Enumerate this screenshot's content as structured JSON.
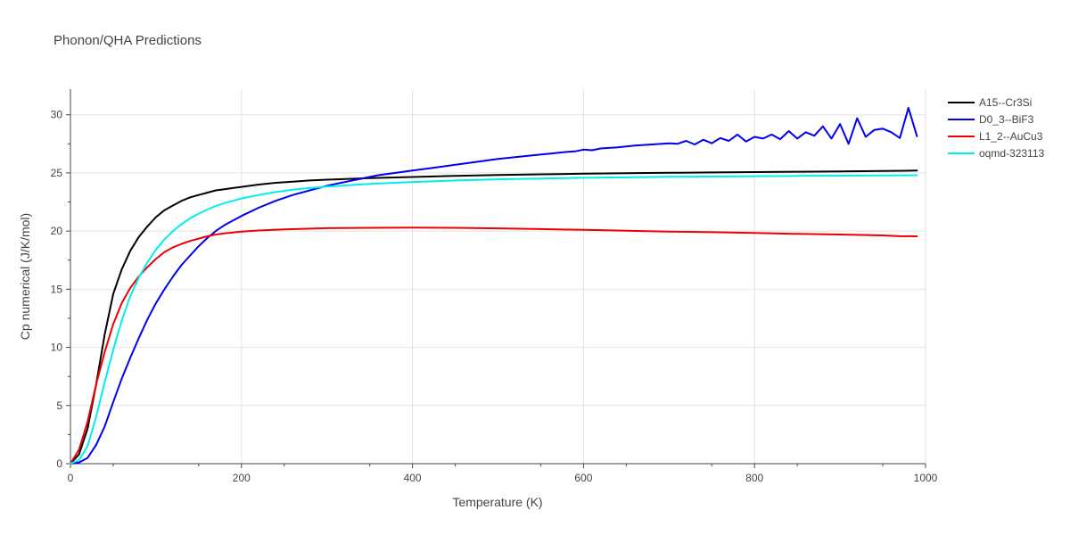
{
  "chart_data": {
    "type": "line",
    "title": "Phonon/QHA Predictions",
    "xlabel": "Temperature (K)",
    "ylabel": "Cp numerical (J/K/mol)",
    "xlim": [
      0,
      1000
    ],
    "ylim": [
      0,
      32.2
    ],
    "xticks": [
      0,
      200,
      400,
      600,
      800,
      1000
    ],
    "xtick_labels": [
      "0",
      "200",
      "400",
      "600",
      "800",
      "1000"
    ],
    "yticks": [
      0,
      5,
      10,
      15,
      20,
      25,
      30
    ],
    "ytick_labels": [
      "0",
      "5",
      "10",
      "15",
      "20",
      "25",
      "30"
    ],
    "grid": true,
    "legend_position": "top-right",
    "series": [
      {
        "name": "A15--Cr3Si",
        "color": "#000000",
        "x": [
          0,
          10,
          20,
          30,
          40,
          50,
          60,
          70,
          80,
          90,
          100,
          110,
          120,
          130,
          140,
          150,
          160,
          170,
          180,
          190,
          200,
          220,
          240,
          260,
          280,
          300,
          350,
          400,
          450,
          500,
          550,
          600,
          650,
          700,
          750,
          800,
          850,
          900,
          950,
          990
        ],
        "y": [
          0,
          0.8,
          3.0,
          6.8,
          11.1,
          14.6,
          16.7,
          18.3,
          19.5,
          20.4,
          21.2,
          21.8,
          22.2,
          22.6,
          22.9,
          23.1,
          23.3,
          23.5,
          23.6,
          23.7,
          23.8,
          24.0,
          24.15,
          24.25,
          24.35,
          24.42,
          24.55,
          24.65,
          24.75,
          24.82,
          24.88,
          24.93,
          24.97,
          25.01,
          25.04,
          25.07,
          25.1,
          25.13,
          25.16,
          25.2
        ]
      },
      {
        "name": "D0_3--BiF3",
        "color": "#0000ee",
        "x": [
          0,
          10,
          20,
          30,
          40,
          50,
          60,
          70,
          80,
          90,
          100,
          110,
          120,
          130,
          140,
          150,
          160,
          170,
          180,
          190,
          200,
          220,
          240,
          260,
          280,
          300,
          320,
          340,
          360,
          380,
          400,
          420,
          440,
          460,
          480,
          500,
          520,
          540,
          560,
          580,
          590,
          600,
          610,
          620,
          640,
          660,
          680,
          700,
          710,
          720,
          730,
          740,
          750,
          760,
          770,
          780,
          790,
          800,
          810,
          820,
          830,
          840,
          850,
          860,
          870,
          880,
          890,
          900,
          910,
          920,
          930,
          940,
          950,
          960,
          970,
          980,
          990
        ],
        "y": [
          0,
          0.1,
          0.5,
          1.6,
          3.2,
          5.3,
          7.3,
          9.1,
          10.8,
          12.4,
          13.8,
          15.0,
          16.1,
          17.1,
          17.9,
          18.7,
          19.4,
          20.0,
          20.5,
          20.9,
          21.3,
          22.0,
          22.6,
          23.1,
          23.5,
          23.9,
          24.2,
          24.5,
          24.8,
          25.0,
          25.2,
          25.4,
          25.6,
          25.8,
          26.0,
          26.2,
          26.35,
          26.5,
          26.65,
          26.8,
          26.85,
          27.0,
          26.95,
          27.1,
          27.2,
          27.35,
          27.45,
          27.55,
          27.5,
          27.75,
          27.45,
          27.85,
          27.55,
          28.0,
          27.75,
          28.3,
          27.7,
          28.1,
          27.95,
          28.3,
          27.9,
          28.6,
          27.95,
          28.5,
          28.2,
          29.0,
          27.95,
          29.2,
          27.5,
          29.7,
          28.1,
          28.7,
          28.8,
          28.5,
          28.0,
          30.6,
          28.15
        ]
      },
      {
        "name": "L1_2--AuCu3",
        "color": "#ee0000",
        "x": [
          0,
          10,
          20,
          30,
          40,
          50,
          60,
          70,
          80,
          90,
          100,
          110,
          120,
          130,
          140,
          150,
          160,
          170,
          180,
          190,
          200,
          220,
          250,
          300,
          350,
          400,
          450,
          500,
          550,
          600,
          650,
          700,
          750,
          800,
          850,
          900,
          950,
          970,
          990
        ],
        "y": [
          0,
          1.2,
          3.6,
          6.8,
          9.6,
          12.0,
          13.8,
          15.1,
          16.1,
          16.9,
          17.6,
          18.2,
          18.6,
          18.9,
          19.15,
          19.35,
          19.55,
          19.7,
          19.8,
          19.88,
          19.95,
          20.05,
          20.15,
          20.25,
          20.28,
          20.3,
          20.28,
          20.23,
          20.17,
          20.1,
          20.03,
          19.96,
          19.9,
          19.83,
          19.76,
          19.7,
          19.63,
          19.56,
          19.55
        ]
      },
      {
        "name": "oqmd-323113",
        "color": "#00eeee",
        "x": [
          0,
          10,
          20,
          30,
          40,
          50,
          60,
          70,
          80,
          90,
          100,
          110,
          120,
          130,
          140,
          150,
          160,
          170,
          180,
          190,
          200,
          220,
          240,
          260,
          280,
          300,
          350,
          400,
          450,
          500,
          550,
          600,
          650,
          700,
          750,
          800,
          850,
          900,
          950,
          990
        ],
        "y": [
          0,
          0.3,
          1.5,
          4.0,
          7.0,
          9.8,
          12.3,
          14.4,
          16.0,
          17.3,
          18.4,
          19.3,
          20.0,
          20.6,
          21.1,
          21.5,
          21.85,
          22.15,
          22.4,
          22.6,
          22.8,
          23.1,
          23.35,
          23.55,
          23.7,
          23.82,
          24.05,
          24.22,
          24.35,
          24.45,
          24.52,
          24.58,
          24.62,
          24.66,
          24.69,
          24.72,
          24.74,
          24.76,
          24.78,
          24.8
        ]
      }
    ]
  }
}
